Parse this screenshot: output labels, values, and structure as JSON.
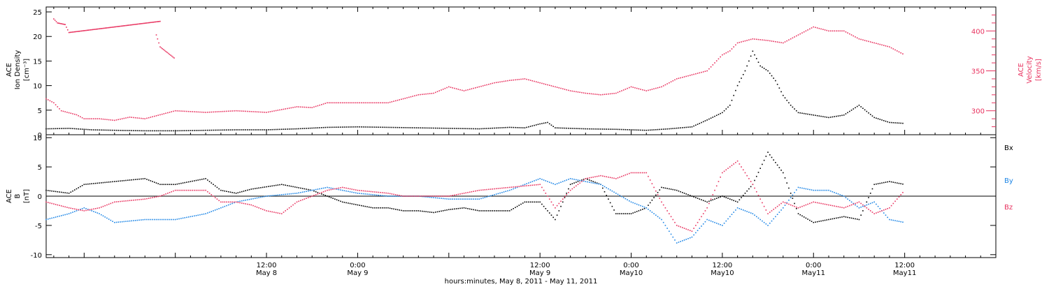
{
  "colors": {
    "black_series": "#000000",
    "red_series": "#e8325f",
    "blue_series": "#1e86e6"
  },
  "xaxis": {
    "label": "hours:minutes, May  8, 2011 - May 11, 2011",
    "range_hours": [
      -17,
      108
    ],
    "ticks": [
      {
        "hour": 12,
        "time": "12:00",
        "day": "May 8"
      },
      {
        "hour": 24,
        "time": "0:00",
        "day": "May 9"
      },
      {
        "hour": 48,
        "time": "12:00",
        "day": "May 9"
      },
      {
        "hour": 60,
        "time": "0:00",
        "day": "May10"
      },
      {
        "hour": 72,
        "time": "12:00",
        "day": "May10"
      },
      {
        "hour": 84,
        "time": "0:00",
        "day": "May11"
      },
      {
        "hour": 96,
        "time": "12:00",
        "day": "May11"
      }
    ]
  },
  "chart_data": [
    {
      "type": "scatter",
      "panel": "top",
      "ylabel_left": [
        "ACE",
        "Ion Density",
        "[cm⁻³]"
      ],
      "ylim": [
        0,
        26
      ],
      "yticks": [
        0,
        5,
        10,
        15,
        20,
        25
      ],
      "ylabel_right": [
        "ACE",
        "Velocity",
        "[km/s]"
      ],
      "ylim_right": [
        270,
        430
      ],
      "yticks_right": [
        300,
        350,
        400
      ],
      "series": [
        {
          "name": "Ion Density",
          "axis": "left",
          "color": "#000000",
          "points": [
            [
              -17,
              1.2
            ],
            [
              -14,
              1.3
            ],
            [
              -11,
              1.0
            ],
            [
              -8,
              0.9
            ],
            [
              -4,
              0.8
            ],
            [
              0,
              0.8
            ],
            [
              4,
              0.9
            ],
            [
              8,
              1.0
            ],
            [
              12,
              1.0
            ],
            [
              16,
              1.2
            ],
            [
              20,
              1.5
            ],
            [
              24,
              1.6
            ],
            [
              28,
              1.5
            ],
            [
              32,
              1.4
            ],
            [
              36,
              1.3
            ],
            [
              40,
              1.2
            ],
            [
              44,
              1.5
            ],
            [
              46,
              1.4
            ],
            [
              48,
              2.2
            ],
            [
              49,
              2.5
            ],
            [
              50,
              1.4
            ],
            [
              54,
              1.2
            ],
            [
              58,
              1.1
            ],
            [
              62,
              0.9
            ],
            [
              65,
              1.2
            ],
            [
              68,
              1.6
            ],
            [
              70,
              3
            ],
            [
              72,
              4.5
            ],
            [
              73,
              6
            ],
            [
              74,
              10
            ],
            [
              75,
              13
            ],
            [
              76,
              17
            ],
            [
              77,
              14
            ],
            [
              78,
              13
            ],
            [
              79,
              11
            ],
            [
              80,
              8
            ],
            [
              81,
              6
            ],
            [
              82,
              4.5
            ],
            [
              84,
              4
            ],
            [
              86,
              3.5
            ],
            [
              88,
              4
            ],
            [
              90,
              6
            ],
            [
              92,
              3.5
            ],
            [
              94,
              2.5
            ],
            [
              96,
              2.3
            ]
          ]
        },
        {
          "name": "Velocity",
          "axis": "right",
          "color": "#e8325f",
          "points": [
            [
              -17,
              315
            ],
            [
              -16,
              310
            ],
            [
              -15,
              300
            ],
            [
              -13,
              295
            ],
            [
              -12,
              290
            ],
            [
              -10,
              290
            ],
            [
              -8,
              288
            ],
            [
              -6,
              292
            ],
            [
              -4,
              290
            ],
            [
              -2,
              295
            ],
            [
              0,
              300
            ],
            [
              4,
              298
            ],
            [
              8,
              300
            ],
            [
              12,
              298
            ],
            [
              16,
              305
            ],
            [
              18,
              304
            ],
            [
              20,
              310
            ],
            [
              24,
              310
            ],
            [
              28,
              310
            ],
            [
              30,
              315
            ],
            [
              32,
              320
            ],
            [
              34,
              322
            ],
            [
              36,
              330
            ],
            [
              38,
              325
            ],
            [
              40,
              330
            ],
            [
              42,
              335
            ],
            [
              44,
              338
            ],
            [
              46,
              340
            ],
            [
              48,
              335
            ],
            [
              50,
              330
            ],
            [
              52,
              325
            ],
            [
              54,
              322
            ],
            [
              56,
              320
            ],
            [
              58,
              322
            ],
            [
              60,
              330
            ],
            [
              62,
              325
            ],
            [
              64,
              330
            ],
            [
              66,
              340
            ],
            [
              68,
              345
            ],
            [
              70,
              350
            ],
            [
              72,
              370
            ],
            [
              73,
              375
            ],
            [
              74,
              385
            ],
            [
              76,
              390
            ],
            [
              78,
              388
            ],
            [
              80,
              385
            ],
            [
              82,
              395
            ],
            [
              84,
              405
            ],
            [
              86,
              400
            ],
            [
              88,
              400
            ],
            [
              90,
              390
            ],
            [
              92,
              385
            ],
            [
              94,
              380
            ],
            [
              96,
              370
            ]
          ]
        },
        {
          "name": "Velocity (early)",
          "axis": "right",
          "color": "#e8325f",
          "points": [
            [
              -16,
              415
            ],
            [
              -15.5,
              410
            ],
            [
              -14.5,
              408
            ],
            [
              -14,
              398
            ],
            [
              -2,
              412
            ],
            [
              -2.5,
              395
            ],
            [
              -2,
              380
            ],
            [
              0,
              365
            ]
          ]
        }
      ]
    },
    {
      "type": "scatter",
      "panel": "bottom",
      "ylabel_left": [
        "ACE",
        "B",
        "[nT]"
      ],
      "ylim": [
        -10.5,
        10.5
      ],
      "yticks": [
        -10,
        -5,
        0,
        5,
        10
      ],
      "legend": [
        "Bx",
        "By",
        "Bz"
      ],
      "legend_placement": "right",
      "series": [
        {
          "name": "Bx",
          "color": "#000000",
          "points": [
            [
              -17,
              1
            ],
            [
              -14,
              0.5
            ],
            [
              -12,
              2
            ],
            [
              -8,
              2.5
            ],
            [
              -4,
              3
            ],
            [
              -2,
              2
            ],
            [
              0,
              2
            ],
            [
              2,
              2.5
            ],
            [
              4,
              3
            ],
            [
              6,
              1
            ],
            [
              8,
              0.5
            ],
            [
              10,
              1.2
            ],
            [
              14,
              2
            ],
            [
              16,
              1.5
            ],
            [
              18,
              1
            ],
            [
              20,
              0
            ],
            [
              22,
              -1
            ],
            [
              24,
              -1.5
            ],
            [
              26,
              -2
            ],
            [
              28,
              -2
            ],
            [
              30,
              -2.5
            ],
            [
              32,
              -2.5
            ],
            [
              34,
              -2.8
            ],
            [
              36,
              -2.3
            ],
            [
              38,
              -2
            ],
            [
              40,
              -2.5
            ],
            [
              42,
              -2.5
            ],
            [
              44,
              -2.5
            ],
            [
              46,
              -1
            ],
            [
              48,
              -1
            ],
            [
              50,
              -4
            ],
            [
              52,
              2
            ],
            [
              54,
              3
            ],
            [
              56,
              2
            ],
            [
              58,
              -3
            ],
            [
              60,
              -3
            ],
            [
              62,
              -2
            ],
            [
              64,
              1.5
            ],
            [
              66,
              1
            ],
            [
              68,
              0
            ],
            [
              70,
              -1
            ],
            [
              72,
              0
            ],
            [
              74,
              -1
            ],
            [
              76,
              2
            ],
            [
              78,
              7.5
            ],
            [
              80,
              4
            ],
            [
              82,
              -3
            ],
            [
              84,
              -4.5
            ],
            [
              86,
              -4
            ],
            [
              88,
              -3.5
            ],
            [
              90,
              -4
            ],
            [
              92,
              2
            ],
            [
              94,
              2.5
            ],
            [
              96,
              2
            ]
          ]
        },
        {
          "name": "By",
          "color": "#1e86e6",
          "points": [
            [
              -17,
              -4
            ],
            [
              -14,
              -3
            ],
            [
              -12,
              -2
            ],
            [
              -10,
              -3
            ],
            [
              -8,
              -4.5
            ],
            [
              -4,
              -4
            ],
            [
              0,
              -4
            ],
            [
              4,
              -3
            ],
            [
              8,
              -1
            ],
            [
              12,
              0
            ],
            [
              16,
              0.5
            ],
            [
              20,
              1.5
            ],
            [
              24,
              0.5
            ],
            [
              28,
              0
            ],
            [
              32,
              0
            ],
            [
              36,
              -0.5
            ],
            [
              40,
              -0.5
            ],
            [
              44,
              1
            ],
            [
              48,
              3
            ],
            [
              50,
              2
            ],
            [
              52,
              3
            ],
            [
              56,
              2
            ],
            [
              60,
              -1
            ],
            [
              62,
              -2
            ],
            [
              64,
              -4
            ],
            [
              66,
              -8
            ],
            [
              68,
              -7
            ],
            [
              70,
              -4
            ],
            [
              72,
              -5
            ],
            [
              74,
              -2
            ],
            [
              76,
              -3
            ],
            [
              78,
              -5
            ],
            [
              80,
              -2
            ],
            [
              82,
              1.5
            ],
            [
              84,
              1
            ],
            [
              86,
              1
            ],
            [
              88,
              0
            ],
            [
              90,
              -2
            ],
            [
              92,
              -1
            ],
            [
              94,
              -4
            ],
            [
              96,
              -4.5
            ]
          ]
        },
        {
          "name": "Bz",
          "color": "#e8325f",
          "points": [
            [
              -17,
              -1
            ],
            [
              -14,
              -2
            ],
            [
              -12,
              -2.5
            ],
            [
              -10,
              -2
            ],
            [
              -8,
              -1
            ],
            [
              -4,
              -0.5
            ],
            [
              -2,
              0
            ],
            [
              0,
              1
            ],
            [
              2,
              1
            ],
            [
              4,
              1
            ],
            [
              6,
              -1
            ],
            [
              8,
              -1
            ],
            [
              10,
              -1.5
            ],
            [
              12,
              -2.5
            ],
            [
              14,
              -3
            ],
            [
              16,
              -1
            ],
            [
              18,
              0
            ],
            [
              20,
              1
            ],
            [
              22,
              1.5
            ],
            [
              24,
              1
            ],
            [
              28,
              0.5
            ],
            [
              30,
              0
            ],
            [
              32,
              0
            ],
            [
              36,
              0
            ],
            [
              40,
              1
            ],
            [
              44,
              1.5
            ],
            [
              48,
              2
            ],
            [
              50,
              -2
            ],
            [
              52,
              1
            ],
            [
              54,
              3
            ],
            [
              56,
              3.5
            ],
            [
              58,
              3
            ],
            [
              60,
              4
            ],
            [
              62,
              4
            ],
            [
              64,
              -1
            ],
            [
              66,
              -5
            ],
            [
              68,
              -6
            ],
            [
              70,
              -2
            ],
            [
              72,
              4
            ],
            [
              74,
              6
            ],
            [
              76,
              2
            ],
            [
              78,
              -3
            ],
            [
              80,
              -1
            ],
            [
              82,
              -2
            ],
            [
              84,
              -1
            ],
            [
              86,
              -1.5
            ],
            [
              88,
              -2
            ],
            [
              90,
              -1
            ],
            [
              92,
              -3
            ],
            [
              94,
              -2
            ],
            [
              96,
              1
            ]
          ]
        }
      ]
    }
  ]
}
